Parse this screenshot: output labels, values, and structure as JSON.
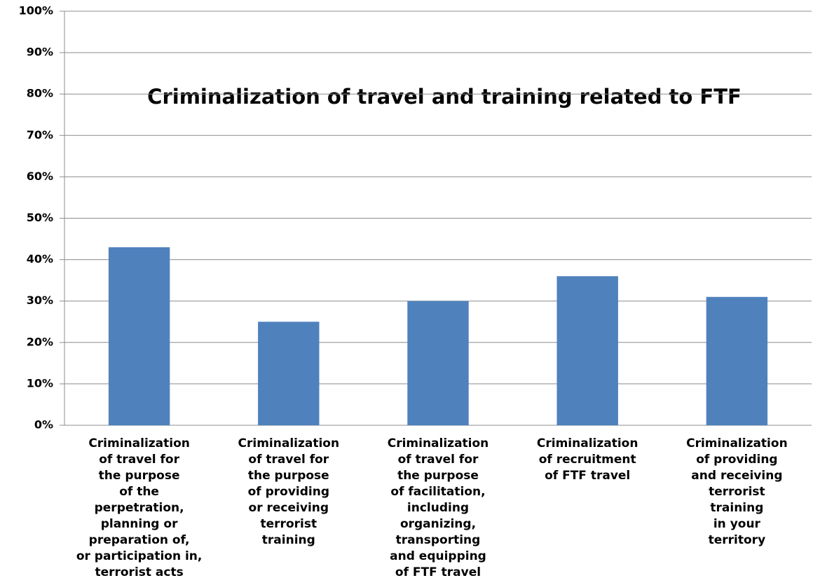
{
  "chart_data": {
    "type": "bar",
    "title": "Criminalization of travel and training related to FTF",
    "categories": [
      "Criminalization\nof travel for\nthe purpose\nof the\nperpetration,\nplanning or\npreparation of,\nor participation in,\nterrorist acts",
      "Criminalization\nof travel for\nthe purpose\nof providing\nor receiving\nterrorist\ntraining",
      "Criminalization\nof travel for\nthe purpose\nof facilitation,\nincluding\norganizing,\ntransporting\nand equipping\nof FTF travel",
      "Criminalization\nof recruitment\nof FTF travel",
      "Criminalization\nof providing\nand receiving\nterrorist\ntraining\nin your\nterritory"
    ],
    "values": [
      43,
      25,
      30,
      36,
      31
    ],
    "color": "#4f81bd",
    "ylim": [
      0,
      100
    ],
    "yticks": [
      {
        "value": 0,
        "label": "0%"
      },
      {
        "value": 10,
        "label": "10%"
      },
      {
        "value": 20,
        "label": "20%"
      },
      {
        "value": 30,
        "label": "30%"
      },
      {
        "value": 40,
        "label": "40%"
      },
      {
        "value": 50,
        "label": "50%"
      },
      {
        "value": 60,
        "label": "60%"
      },
      {
        "value": 70,
        "label": "70%"
      },
      {
        "value": 80,
        "label": "80%"
      },
      {
        "value": 90,
        "label": "90%"
      },
      {
        "value": 100,
        "label": "100%"
      }
    ],
    "grid": true
  }
}
